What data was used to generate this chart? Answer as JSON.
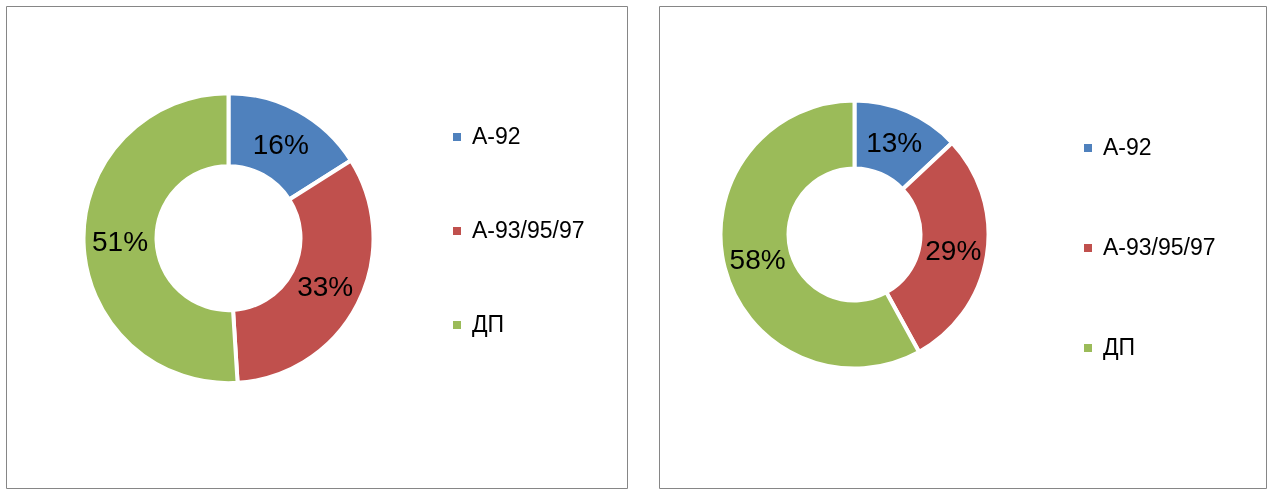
{
  "chart_data": [
    {
      "type": "donut",
      "categories": [
        "А-92",
        "А-93/95/97",
        "ДП"
      ],
      "values": [
        16,
        33,
        51
      ],
      "colors": [
        "#4f81bd",
        "#c0504d",
        "#9bbb59"
      ],
      "value_labels": [
        "16%",
        "33%",
        "51%"
      ],
      "legend": "right"
    },
    {
      "type": "donut",
      "categories": [
        "А-92",
        "А-93/95/97",
        "ДП"
      ],
      "values": [
        13,
        29,
        58
      ],
      "colors": [
        "#4f81bd",
        "#c0504d",
        "#9bbb59"
      ],
      "value_labels": [
        "13%",
        "29%",
        "58%"
      ],
      "legend": "right"
    }
  ]
}
